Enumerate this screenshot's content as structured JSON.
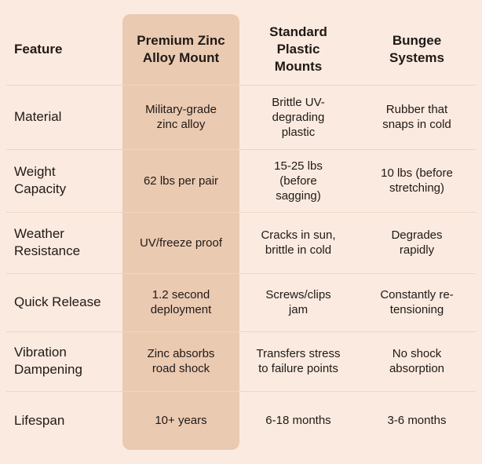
{
  "table": {
    "header": [
      "Feature",
      "Premium Zinc\nAlloy Mount",
      "Standard\nPlastic\nMounts",
      "Bungee\nSystems"
    ],
    "rows": [
      [
        "Material",
        "Military-grade\nzinc alloy",
        "Brittle UV-\ndegrading\nplastic",
        "Rubber that\nsnaps in cold"
      ],
      [
        "Weight\nCapacity",
        "62 lbs per pair",
        "15-25 lbs\n(before\nsagging)",
        "10 lbs (before\nstretching)"
      ],
      [
        "Weather\nResistance",
        "UV/freeze proof",
        "Cracks in sun,\nbrittle in cold",
        "Degrades\nrapidly"
      ],
      [
        "Quick Release",
        "1.2 second\ndeployment",
        "Screws/clips\njam",
        "Constantly re-\ntensioning"
      ],
      [
        "Vibration\nDampening",
        "Zinc absorbs\nroad shock",
        "Transfers stress\nto failure points",
        "No shock\nabsorption"
      ],
      [
        "Lifespan",
        "10+ years",
        "6-18 months",
        "3-6 months"
      ]
    ]
  }
}
